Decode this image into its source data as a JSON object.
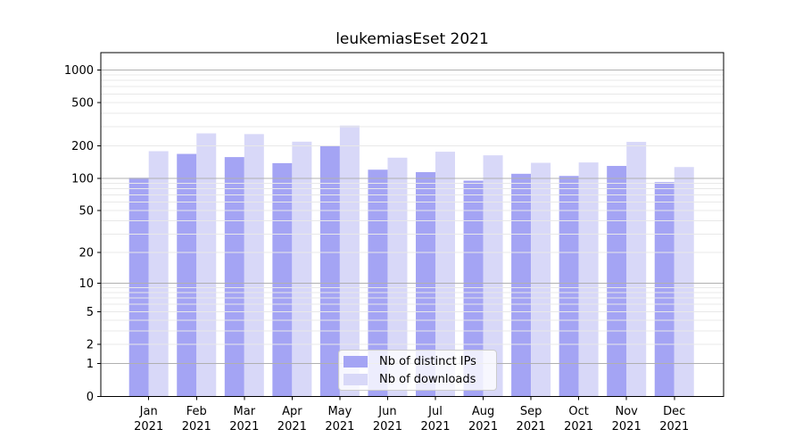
{
  "figure": {
    "background": "#ffffff",
    "plot_border_color": "#000000",
    "major_grid_color": "#b0b0b0",
    "minor_grid_color": "#e8e8e8",
    "text_color": "#000000"
  },
  "chart_data": {
    "type": "bar",
    "title": "leukemiasEset 2021",
    "categories": [
      {
        "label": "Jan",
        "year": "2021"
      },
      {
        "label": "Feb",
        "year": "2021"
      },
      {
        "label": "Mar",
        "year": "2021"
      },
      {
        "label": "Apr",
        "year": "2021"
      },
      {
        "label": "May",
        "year": "2021"
      },
      {
        "label": "Jun",
        "year": "2021"
      },
      {
        "label": "Jul",
        "year": "2021"
      },
      {
        "label": "Aug",
        "year": "2021"
      },
      {
        "label": "Sep",
        "year": "2021"
      },
      {
        "label": "Oct",
        "year": "2021"
      },
      {
        "label": "Nov",
        "year": "2021"
      },
      {
        "label": "Dec",
        "year": "2021"
      }
    ],
    "series": [
      {
        "name": "Nb of distinct IPs",
        "color": "#a4a4f4",
        "values": [
          101,
          168,
          157,
          138,
          200,
          120,
          114,
          95,
          110,
          105,
          130,
          92
        ]
      },
      {
        "name": "Nb of downloads",
        "color": "#d8d8f8",
        "values": [
          178,
          260,
          256,
          218,
          307,
          155,
          176,
          163,
          139,
          140,
          217,
          127
        ]
      }
    ],
    "y_axis": {
      "scale": "log10(1+x)",
      "ylim": [
        0,
        1000
      ],
      "ticks": [
        0,
        1,
        2,
        5,
        10,
        20,
        50,
        100,
        200,
        500,
        1000
      ],
      "major_gridlines": [
        1,
        10,
        100,
        1000
      ],
      "minor_gridlines": [
        2,
        3,
        4,
        5,
        6,
        7,
        8,
        9,
        20,
        30,
        40,
        50,
        60,
        70,
        80,
        90,
        200,
        300,
        400,
        500,
        600,
        700,
        800,
        900
      ]
    },
    "legend_position": "lower center",
    "grid": true
  }
}
